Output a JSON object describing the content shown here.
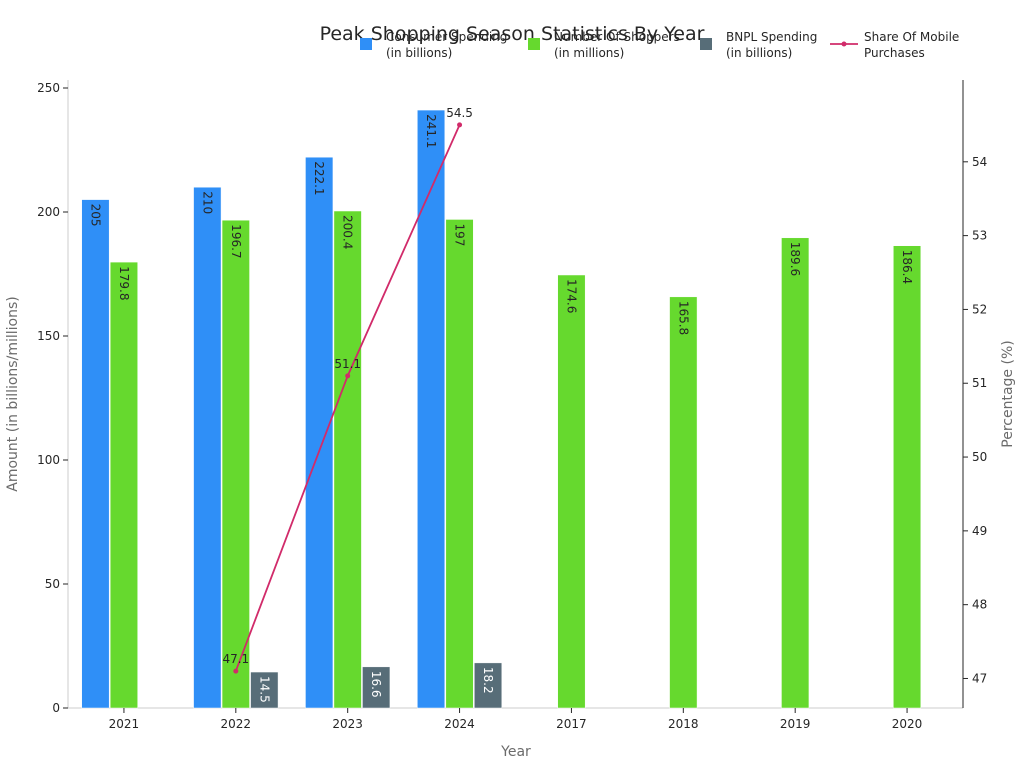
{
  "chart_data": {
    "type": "bar",
    "title": "Peak Shopping Season Statistics By Year",
    "xlabel": "Year",
    "ylabel": "Amount (in billions/millions)",
    "y2label": "Percentage (%)",
    "categories": [
      "2021",
      "2022",
      "2023",
      "2024",
      "2017",
      "2018",
      "2019",
      "2020"
    ],
    "ylim": [
      0,
      250
    ],
    "yticks": [
      "0",
      "50",
      "100",
      "150",
      "200",
      "250"
    ],
    "y2lim": [
      46.6,
      55
    ],
    "y2ticks": [
      "47",
      "48",
      "49",
      "50",
      "51",
      "52",
      "53",
      "54"
    ],
    "legend_position": "top-right",
    "series": [
      {
        "name": "Consumer Spending",
        "name_line2": "(in billions)",
        "kind": "bar",
        "color": "#2f8ff7",
        "values": [
          205,
          210,
          222.1,
          241.1,
          null,
          null,
          null,
          null
        ],
        "labels": [
          "205",
          "210",
          "222.1",
          "241.1",
          "",
          "",
          "",
          ""
        ]
      },
      {
        "name": "Number Of Shoppers",
        "name_line2": "(in millions)",
        "kind": "bar",
        "color": "#66d92e",
        "values": [
          179.8,
          196.7,
          200.4,
          197,
          174.6,
          165.8,
          189.6,
          186.4
        ],
        "labels": [
          "179.8",
          "196.7",
          "200.4",
          "197",
          "174.6",
          "165.8",
          "189.6",
          "186.4"
        ]
      },
      {
        "name": "BNPL Spending",
        "name_line2": "(in billions)",
        "kind": "bar",
        "color": "#576d78",
        "values": [
          null,
          14.5,
          16.6,
          18.2,
          null,
          null,
          null,
          null
        ],
        "labels": [
          "",
          "14.5",
          "16.6",
          "18.2",
          "",
          "",
          "",
          ""
        ]
      },
      {
        "name": "Share Of Mobile",
        "name_line2": "Purchases",
        "kind": "line",
        "axis": "secondary",
        "color": "#d12b6a",
        "values": [
          null,
          47.1,
          51.1,
          54.5,
          null,
          null,
          null,
          null
        ],
        "labels": [
          "",
          "47.1",
          "51.1",
          "54.5",
          "",
          "",
          "",
          ""
        ]
      }
    ]
  }
}
